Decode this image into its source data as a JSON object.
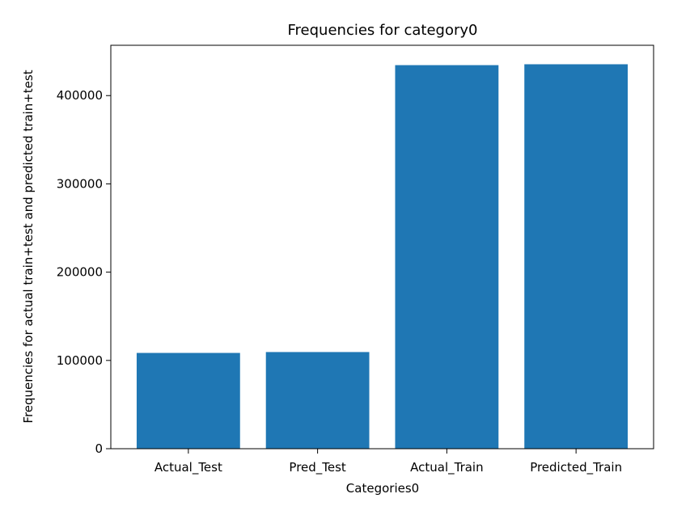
{
  "chart_data": {
    "type": "bar",
    "title": "Frequencies for category0",
    "xlabel": "Categories0",
    "ylabel": "Frequencies for actual train+test and predicted train+test",
    "categories": [
      "Actual_Test",
      "Pred_Test",
      "Actual_Train",
      "Predicted_Train"
    ],
    "values": [
      108500,
      109500,
      434500,
      435500
    ],
    "ylim": [
      0,
      457000
    ],
    "yticks": [
      0,
      100000,
      200000,
      300000,
      400000
    ],
    "ytick_labels": [
      "0",
      "100000",
      "200000",
      "300000",
      "400000"
    ],
    "grid": false,
    "bar_color": "#1f77b4"
  }
}
